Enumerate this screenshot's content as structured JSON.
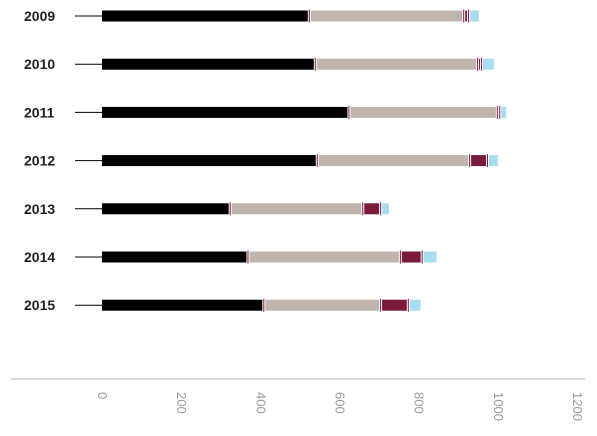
{
  "chart_data": {
    "type": "bar",
    "stacked": true,
    "orientation": "horizontal",
    "title": "",
    "xlabel": "",
    "ylabel": "",
    "categories": [
      "2009",
      "2010",
      "2011",
      "2012",
      "2013",
      "2014",
      "2015"
    ],
    "series": [
      {
        "color": "#000000",
        "values": [
          520,
          535,
          620,
          540,
          320,
          365,
          405
        ]
      },
      {
        "color": "#bfb5ad",
        "values": [
          390,
          410,
          375,
          385,
          335,
          385,
          295
        ]
      },
      {
        "color": "#7a1a3c",
        "values": [
          12,
          10,
          6,
          45,
          45,
          55,
          70
        ]
      },
      {
        "color": "#a8dcf0",
        "values": [
          30,
          35,
          20,
          30,
          25,
          40,
          35
        ]
      }
    ],
    "xlim": [
      0,
      1200
    ],
    "xticks": [
      "0",
      "200",
      "400",
      "600",
      "800",
      "1000",
      "1200"
    ],
    "grid": false,
    "legend": "none"
  }
}
